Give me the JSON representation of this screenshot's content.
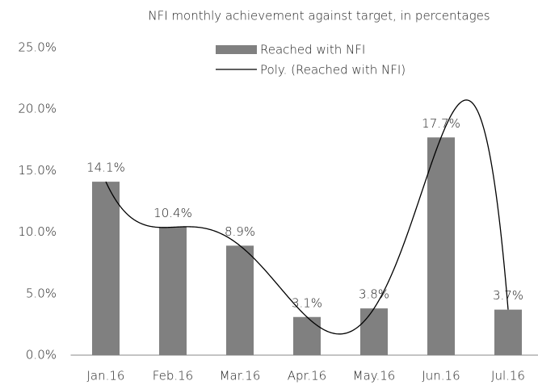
{
  "chart_data": {
    "type": "bar",
    "title": "NFI monthly achievement against target, in percentages",
    "categories": [
      "Jan.16",
      "Feb.16",
      "Mar.16",
      "Apr.16",
      "May.16",
      "Jun.16",
      "Jul.16"
    ],
    "series": [
      {
        "name": "Reached with NFI",
        "color": "#808080",
        "values": [
          14.1,
          10.4,
          8.9,
          3.1,
          3.8,
          17.7,
          3.7
        ],
        "value_labels": [
          "14.1%",
          "10.4%",
          "8.9%",
          "3.1%",
          "3.8%",
          "17.7%",
          "3.7%"
        ]
      }
    ],
    "trendline": {
      "name": "Poly. (Reached with NFI)",
      "color": "#000000"
    },
    "ylim": [
      0,
      25
    ],
    "yticks": [
      {
        "value": 0,
        "label": "0.0%"
      },
      {
        "value": 5,
        "label": "5.0%"
      },
      {
        "value": 10,
        "label": "10.0%"
      },
      {
        "value": 15,
        "label": "15.0%"
      },
      {
        "value": 20,
        "label": "20.0%"
      },
      {
        "value": 25,
        "label": "25.0%"
      }
    ],
    "grid": false
  }
}
